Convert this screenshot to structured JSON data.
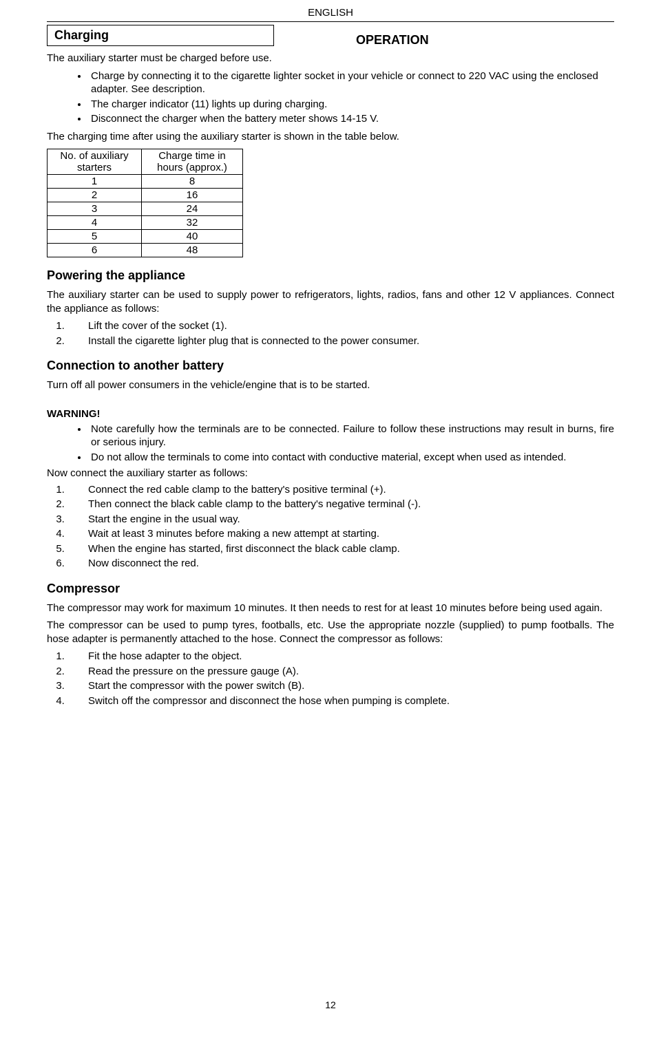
{
  "header": {
    "language": "ENGLISH",
    "pageNumber": "12"
  },
  "titles": {
    "operation": "OPERATION",
    "charging": "Charging",
    "powering": "Powering the appliance",
    "connection": "Connection to another battery",
    "compressor": "Compressor"
  },
  "charging": {
    "intro": "The auxiliary starter must be charged before use.",
    "bullets": [
      "Charge by connecting it to the cigarette lighter socket in your vehicle or connect to 220 VAC using the enclosed adapter. See description.",
      "The charger indicator (11) lights up during charging.",
      "Disconnect the charger when the battery meter shows 14-15 V."
    ],
    "tableNote": "The charging time after using the auxiliary starter is shown in the table below."
  },
  "chargeTable": {
    "headers": [
      "No. of auxiliary starters",
      "Charge time in hours (approx.)"
    ],
    "rows": [
      [
        "1",
        "8"
      ],
      [
        "2",
        "16"
      ],
      [
        "3",
        "24"
      ],
      [
        "4",
        "32"
      ],
      [
        "5",
        "40"
      ],
      [
        "6",
        "48"
      ]
    ]
  },
  "powering": {
    "intro": "The auxiliary starter can be used to supply power to refrigerators, lights, radios, fans and other 12 V appliances. Connect the appliance as follows:",
    "steps": [
      "Lift the cover of the socket (1).",
      "Install the cigarette lighter plug that is connected to the power consumer."
    ]
  },
  "connection": {
    "intro": "Turn off all power consumers in the vehicle/engine that is to be started.",
    "warningLabel": "WARNING!",
    "warningBullets": [
      "Note carefully how the terminals are to be connected. Failure to follow these instructions may result in burns, fire or serious injury.",
      "Do not allow the terminals to come into contact with conductive material, except when used as intended."
    ],
    "nowConnect": "Now connect the auxiliary starter as follows:",
    "steps": [
      "Connect the red cable clamp to the battery's positive terminal (+).",
      "Then connect the black cable clamp to the battery's negative terminal (-).",
      "Start the engine in the usual way.",
      "Wait at least 3 minutes before making a new attempt at starting.",
      "When the engine has started, first disconnect the black cable clamp.",
      "Now disconnect the red."
    ]
  },
  "compressor": {
    "para1": "The compressor may work for maximum 10 minutes. It then needs to rest for at least 10 minutes before being used again.",
    "para2": "The compressor can be used to pump tyres, footballs, etc. Use the appropriate nozzle (supplied) to pump footballs. The hose adapter is permanently attached to the hose. Connect the compressor as follows:",
    "steps": [
      "Fit the hose adapter to the object.",
      "Read the pressure on the pressure gauge (A).",
      "Start the compressor with the power switch (B).",
      "Switch off the compressor and disconnect the hose when pumping is complete."
    ]
  }
}
